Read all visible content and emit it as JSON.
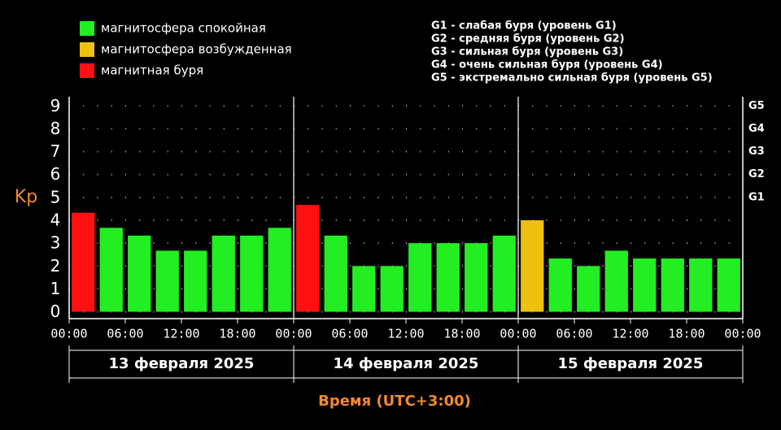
{
  "chart_data": {
    "type": "bar",
    "legend": [
      {
        "label": "магнитосфера спокойная",
        "color": "#22ee22"
      },
      {
        "label": "магнитосфера возбужденная",
        "color": "#f0c010"
      },
      {
        "label": "магнитная буря",
        "color": "#ff1111"
      }
    ],
    "notes": [
      "G1 - слабая буря (уровень G1)",
      "G2 - средняя буря (уровень G2)",
      "G3 - сильная буря (уровень G3)",
      "G4 - очень сильная буря (уровень G4)",
      "G5 - экстремально сильная буря (уровень G5)"
    ],
    "ylabel": "Kp",
    "xlabel": "Время (UTC+3:00)",
    "days": [
      "13 февраля 2025",
      "14 февраля 2025",
      "15 февраля 2025"
    ],
    "x": [
      1.5,
      4.5,
      7.5,
      10.5,
      13.5,
      16.5,
      19.5,
      22.5,
      25.5,
      28.5,
      31.5,
      34.5,
      37.5,
      40.5,
      43.5,
      46.5,
      49.5,
      52.5,
      55.5,
      58.5,
      61.5,
      64.5,
      67.5,
      70.5
    ],
    "series": [
      {
        "name": "Kp",
        "values": [
          4.33,
          3.67,
          3.33,
          2.67,
          2.67,
          3.33,
          3.33,
          3.67,
          4.67,
          3.33,
          2.0,
          2.0,
          3.0,
          3.0,
          3.0,
          3.33,
          4.0,
          2.33,
          2.0,
          2.67,
          2.33,
          2.33,
          2.33,
          2.33
        ],
        "colors": [
          "#ff1111",
          "#22ee22",
          "#22ee22",
          "#22ee22",
          "#22ee22",
          "#22ee22",
          "#22ee22",
          "#22ee22",
          "#ff1111",
          "#22ee22",
          "#22ee22",
          "#22ee22",
          "#22ee22",
          "#22ee22",
          "#22ee22",
          "#22ee22",
          "#f0c010",
          "#22ee22",
          "#22ee22",
          "#22ee22",
          "#22ee22",
          "#22ee22",
          "#22ee22",
          "#22ee22"
        ]
      }
    ],
    "xlim": [
      0,
      72
    ],
    "xticks": [
      {
        "value": 0,
        "label": "00:00"
      },
      {
        "value": 6,
        "label": "06:00"
      },
      {
        "value": 12,
        "label": "12:00"
      },
      {
        "value": 18,
        "label": "18:00"
      },
      {
        "value": 24,
        "label": "00:00"
      },
      {
        "value": 30,
        "label": "06:00"
      },
      {
        "value": 36,
        "label": "12:00"
      },
      {
        "value": 42,
        "label": "18:00"
      },
      {
        "value": 48,
        "label": "00:00"
      },
      {
        "value": 54,
        "label": "06:00"
      },
      {
        "value": 60,
        "label": "12:00"
      },
      {
        "value": 66,
        "label": "18:00"
      },
      {
        "value": 72,
        "label": "00:00"
      }
    ],
    "ylim": [
      -0.3,
      9.4
    ],
    "yticks": [
      0,
      1,
      2,
      3,
      4,
      5,
      6,
      7,
      8,
      9
    ],
    "y2lim": [
      -0.3,
      9.4
    ],
    "y2ticks": [
      {
        "value": 5,
        "label": "G1"
      },
      {
        "value": 6,
        "label": "G2"
      },
      {
        "value": 7,
        "label": "G3"
      },
      {
        "value": 8,
        "label": "G4"
      },
      {
        "value": 9,
        "label": "G5"
      }
    ],
    "grid": true
  }
}
